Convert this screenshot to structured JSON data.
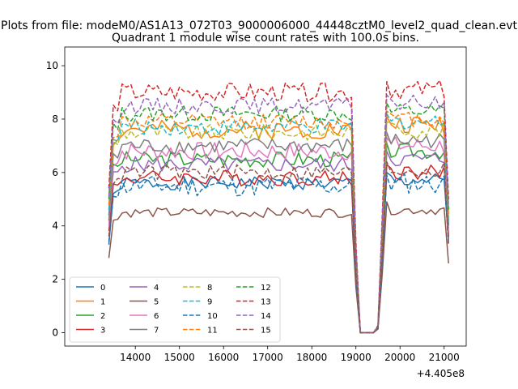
{
  "figure": {
    "suptitle": "Plots from file: modeM0/AS1A13_072T03_9000006000_44448cztM0_level2_quad_clean.evt"
  },
  "chart_data": {
    "type": "line",
    "title": "Quadrant 1 module wise count rates with 100.0s bins.",
    "xlabel": "",
    "ylabel": "",
    "x_offset_label": "+4.405e8",
    "xlim": [
      12400,
      21500
    ],
    "ylim": [
      -0.5,
      10.7
    ],
    "x_ticks": [
      14000,
      15000,
      16000,
      17000,
      18000,
      19000,
      20000,
      21000
    ],
    "y_ticks": [
      0,
      2,
      4,
      6,
      8,
      10
    ],
    "grid": false,
    "legend_position": "lower-left",
    "legend_columns": 4,
    "segments": [
      {
        "x_start": 13400,
        "x_end": 18900
      },
      {
        "x_start": 19700,
        "x_end": 21100
      }
    ],
    "gap_x": [
      18900,
      19000,
      19100,
      19200,
      19300,
      19400,
      19500,
      19600,
      19700
    ],
    "gap_profile": [
      1.0,
      0.38,
      0.0,
      0.0,
      0.0,
      0.0,
      0.03,
      0.5,
      1.0
    ],
    "series": [
      {
        "name": "0",
        "color": "#1f77b4",
        "dash": "solid",
        "start": 3.3,
        "mean": 5.6,
        "mean2": 5.7,
        "amp": 0.25,
        "seed": 1,
        "end": 3.5
      },
      {
        "name": "1",
        "color": "#ff7f0e",
        "dash": "solid",
        "start": 4.6,
        "mean": 7.6,
        "mean2": 7.8,
        "amp": 0.35,
        "seed": 2,
        "end": 4.2
      },
      {
        "name": "2",
        "color": "#2ca02c",
        "dash": "solid",
        "start": 4.4,
        "mean": 6.5,
        "mean2": 6.8,
        "amp": 0.3,
        "seed": 3,
        "end": 4.0
      },
      {
        "name": "3",
        "color": "#d62728",
        "dash": "solid",
        "start": 3.8,
        "mean": 5.8,
        "mean2": 6.0,
        "amp": 0.3,
        "seed": 4,
        "end": 3.6
      },
      {
        "name": "4",
        "color": "#9467bd",
        "dash": "solid",
        "start": 4.4,
        "mean": 6.3,
        "mean2": 6.5,
        "amp": 0.3,
        "seed": 5,
        "end": 4.0
      },
      {
        "name": "5",
        "color": "#8c564b",
        "dash": "solid",
        "start": 2.8,
        "mean": 4.5,
        "mean2": 4.6,
        "amp": 0.18,
        "seed": 6,
        "end": 2.6
      },
      {
        "name": "6",
        "color": "#e377c2",
        "dash": "solid",
        "start": 4.0,
        "mean": 6.8,
        "mean2": 7.0,
        "amp": 0.35,
        "seed": 7,
        "end": 3.9
      },
      {
        "name": "7",
        "color": "#7f7f7f",
        "dash": "solid",
        "start": 4.2,
        "mean": 7.0,
        "mean2": 7.2,
        "amp": 0.3,
        "seed": 8,
        "end": 4.0
      },
      {
        "name": "8",
        "color": "#bcbd22",
        "dash": "dashed",
        "start": 4.8,
        "mean": 7.5,
        "mean2": 7.6,
        "amp": 0.3,
        "seed": 9,
        "end": 4.3
      },
      {
        "name": "9",
        "color": "#17becf",
        "dash": "dashed",
        "start": 4.6,
        "mean": 7.7,
        "mean2": 7.9,
        "amp": 0.3,
        "seed": 10,
        "end": 4.1
      },
      {
        "name": "10",
        "color": "#1f77b4",
        "dash": "dashed",
        "start": 3.4,
        "mean": 5.5,
        "mean2": 5.6,
        "amp": 0.4,
        "seed": 11,
        "end": 3.3
      },
      {
        "name": "11",
        "color": "#ff7f0e",
        "dash": "dashed",
        "start": 4.8,
        "mean": 7.9,
        "mean2": 8.0,
        "amp": 0.3,
        "seed": 12,
        "end": 4.4
      },
      {
        "name": "12",
        "color": "#2ca02c",
        "dash": "dashed",
        "start": 5.0,
        "mean": 8.2,
        "mean2": 8.3,
        "amp": 0.3,
        "seed": 13,
        "end": 4.6
      },
      {
        "name": "13",
        "color": "#d62728",
        "dash": "dashed",
        "start": 5.4,
        "mean": 9.0,
        "mean2": 9.1,
        "amp": 0.35,
        "seed": 14,
        "end": 5.0
      },
      {
        "name": "14",
        "color": "#9467bd",
        "dash": "dashed",
        "start": 5.1,
        "mean": 8.5,
        "mean2": 8.6,
        "amp": 0.3,
        "seed": 15,
        "end": 4.7
      },
      {
        "name": "15",
        "color": "#8c564b",
        "dash": "dashed",
        "start": 3.6,
        "mean": 6.0,
        "mean2": 6.1,
        "amp": 0.3,
        "seed": 16,
        "end": 3.3
      }
    ]
  }
}
